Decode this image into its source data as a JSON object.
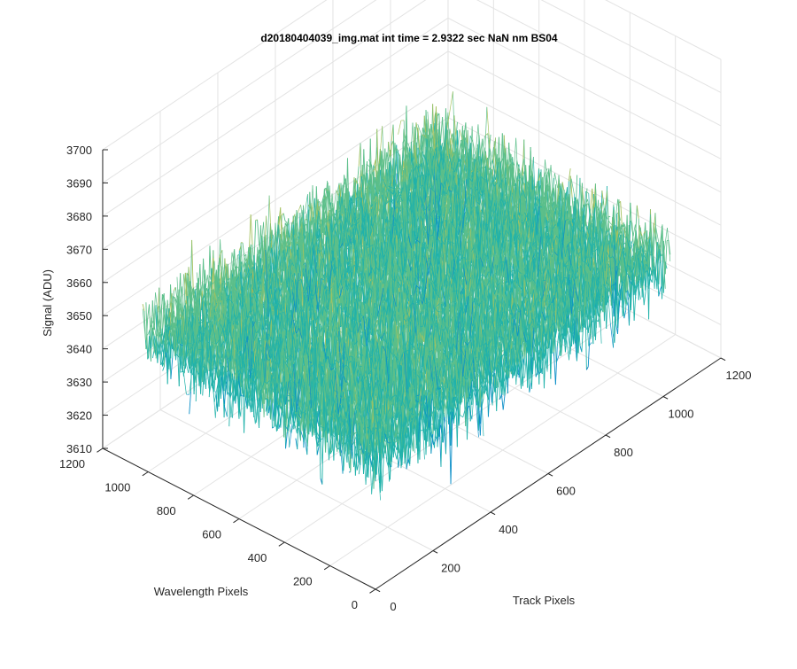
{
  "chart_data": {
    "type": "surface",
    "title": "d20180404039_img.mat int time = 2.9322 sec  NaN nm BS04",
    "xlabel": "Track Pixels",
    "ylabel": "Wavelength Pixels",
    "zlabel": "Signal (ADU)",
    "xlim": [
      0,
      1200
    ],
    "ylim": [
      0,
      1200
    ],
    "zlim": [
      3610,
      3700
    ],
    "x_ticks": [
      "0",
      "200",
      "400",
      "600",
      "800",
      "1000",
      "1200"
    ],
    "y_ticks": [
      "0",
      "200",
      "400",
      "600",
      "800",
      "1000",
      "1200"
    ],
    "z_ticks": [
      "3610",
      "3620",
      "3630",
      "3640",
      "3650",
      "3660",
      "3670",
      "3680",
      "3690",
      "3700"
    ],
    "data_extent": {
      "x": [
        0,
        1024
      ],
      "y": [
        0,
        1024
      ]
    },
    "signal_mean": 3650,
    "signal_range": [
      3605,
      3697
    ],
    "grid": true,
    "box": "open 3-D box with gridlines on back walls and floor",
    "colormap": "parula",
    "colors": {
      "low": "#0072bd",
      "mid": "#20b2aa",
      "high": "#edb120",
      "grid": "#e3e3e3",
      "axis": "#262626"
    }
  }
}
